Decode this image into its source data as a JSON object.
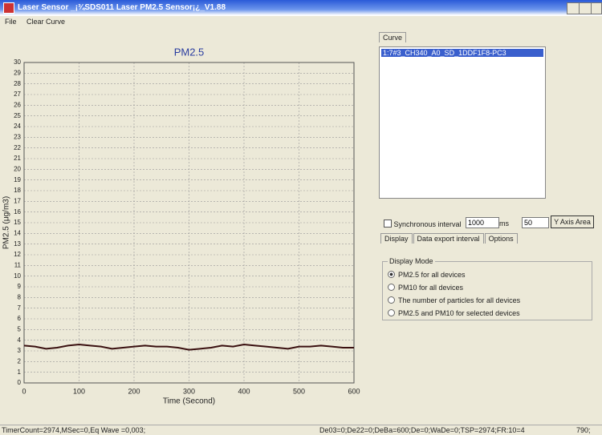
{
  "window": {
    "title": "Laser Sensor _¡¾SDS011 Laser PM2.5 Sensor¡¿_V1.88"
  },
  "menu": [
    "File",
    "Clear Curve"
  ],
  "chart_data": {
    "type": "line",
    "title": "PM2.5",
    "x_label": "Time (Second)",
    "y_label": "PM2.5 (μg/m3)",
    "x": [
      0,
      20,
      40,
      60,
      80,
      100,
      120,
      140,
      160,
      180,
      200,
      220,
      240,
      260,
      280,
      300,
      320,
      340,
      360,
      380,
      400,
      420,
      440,
      460,
      480,
      500,
      520,
      540,
      560,
      580,
      600
    ],
    "values": [
      3.5,
      3.4,
      3.2,
      3.3,
      3.5,
      3.6,
      3.5,
      3.4,
      3.2,
      3.3,
      3.4,
      3.5,
      3.4,
      3.4,
      3.3,
      3.1,
      3.2,
      3.3,
      3.5,
      3.4,
      3.6,
      3.5,
      3.4,
      3.3,
      3.2,
      3.4,
      3.4,
      3.5,
      3.4,
      3.3,
      3.3
    ],
    "color": "#3a1010",
    "xlim": [
      0,
      600
    ],
    "ylim": [
      0,
      30
    ],
    "xticks": [
      0,
      100,
      200,
      300,
      400,
      500,
      600
    ],
    "yticks": [
      0,
      1,
      2,
      3,
      4,
      5,
      6,
      7,
      8,
      9,
      10,
      11,
      12,
      13,
      14,
      15,
      16,
      17,
      18,
      19,
      20,
      21,
      22,
      23,
      24,
      25,
      26,
      27,
      28,
      29,
      30
    ],
    "grid": true
  },
  "right_panel": {
    "curve_tab": "Curve",
    "list_items": [
      "1:7#3_CH340_A0_SD_1DDF1F8-PC3"
    ],
    "sync_label": "Synchronous interval",
    "interval_value": "1000",
    "interval_unit": "ms",
    "area_value": "50",
    "area_button": "Y Axis Area",
    "tabs": [
      "Display",
      "Data export interval",
      "Options"
    ],
    "group_title": "Display Mode",
    "options": [
      "PM2.5 for all devices",
      "PM10 for all devices",
      "The number of particles for all devices",
      "PM2.5 and PM10 for selected devices"
    ]
  },
  "status": [
    "TimerCount=2974,MSec=0,Eq Wave =0,003;",
    "De03=0;De22=0;DeBa=600;De=0;WaDe=0;TSP=2974;FR:10=4",
    "790;"
  ]
}
